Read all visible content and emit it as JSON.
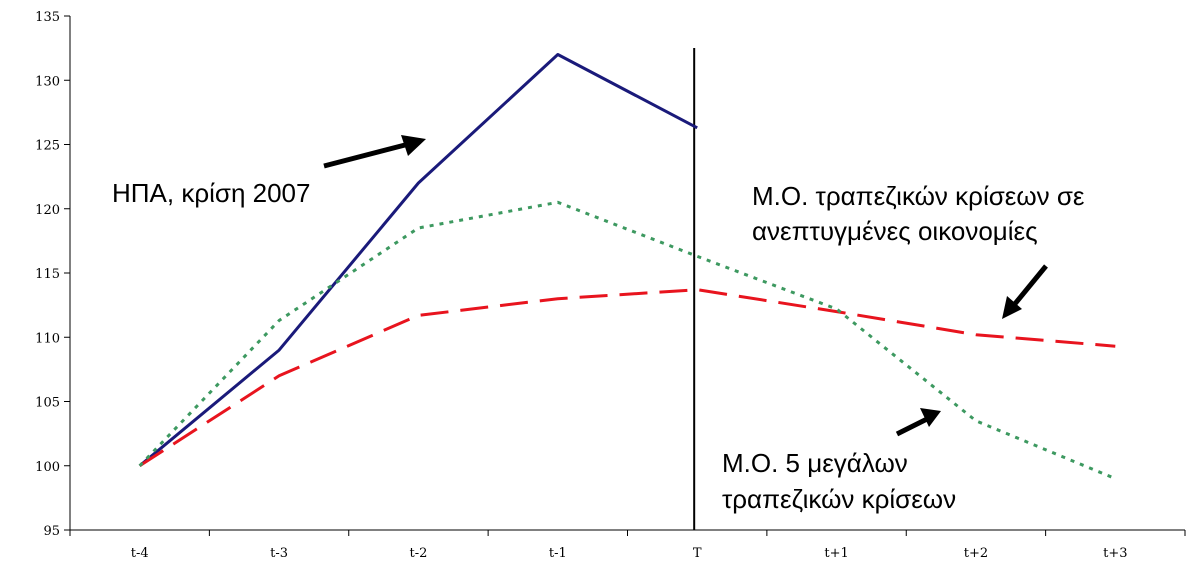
{
  "chart_data": {
    "type": "line",
    "categories": [
      "t-4",
      "t-3",
      "t-2",
      "t-1",
      "T",
      "t+1",
      "t+2",
      "t+3"
    ],
    "ylim": [
      95,
      135
    ],
    "yticks": [
      95,
      100,
      105,
      110,
      115,
      120,
      125,
      130,
      135
    ],
    "grid": false,
    "event_marker": "T",
    "series": [
      {
        "key": "usa",
        "values": [
          100,
          109,
          122,
          132,
          126.3,
          null,
          null,
          null
        ],
        "color": "#1a1a7a",
        "style": "solid"
      },
      {
        "key": "advanced",
        "values": [
          100,
          107,
          111.7,
          113,
          113.7,
          112,
          110.2,
          109.3
        ],
        "color": "#e8141e",
        "style": "dashed"
      },
      {
        "key": "big5",
        "values": [
          100,
          111.3,
          118.5,
          120.5,
          116.3,
          112.2,
          103.5,
          99
        ],
        "color": "#3d9960",
        "style": "dotted"
      }
    ],
    "annotations": [
      {
        "key": "usa",
        "lines": [
          "ΗΠΑ, κρίση 2007"
        ]
      },
      {
        "key": "advanced",
        "lines": [
          "Μ.Ο. τραπεζικών κρίσεων σε",
          "ανεπτυγμένες οικονομίες"
        ]
      },
      {
        "key": "big5",
        "lines": [
          "Μ.Ο. 5 μεγάλων",
          "τραπεζικών κρίσεων"
        ]
      }
    ]
  }
}
